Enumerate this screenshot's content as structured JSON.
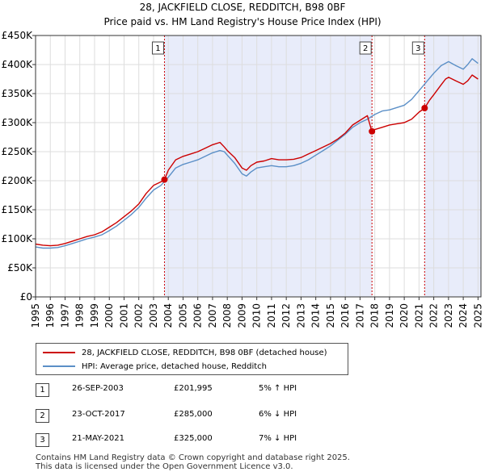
{
  "title_line1": "28, JACKFIELD CLOSE, REDDITCH, B98 0BF",
  "title_line2": "Price paid vs. HM Land Registry's House Price Index (HPI)",
  "chart_data": {
    "type": "line",
    "title": "28, JACKFIELD CLOSE, REDDITCH, B98 0BF — Price paid vs. HM Land Registry's House Price Index (HPI)",
    "xlabel": "",
    "ylabel": "",
    "xlim": [
      1995.0,
      2025.2
    ],
    "ylim": [
      0,
      450000
    ],
    "y_ticks": [
      0,
      50000,
      100000,
      150000,
      200000,
      250000,
      300000,
      350000,
      400000,
      450000
    ],
    "y_tick_labels": [
      "£0",
      "£50K",
      "£100K",
      "£150K",
      "£200K",
      "£250K",
      "£300K",
      "£350K",
      "£400K",
      "£450K"
    ],
    "x_ticks": [
      1995,
      1996,
      1997,
      1998,
      1999,
      2000,
      2001,
      2002,
      2003,
      2004,
      2005,
      2006,
      2007,
      2008,
      2009,
      2010,
      2011,
      2012,
      2013,
      2014,
      2015,
      2016,
      2017,
      2018,
      2019,
      2020,
      2021,
      2022,
      2023,
      2024,
      2025
    ],
    "x_tick_labels": [
      "1995",
      "1996",
      "1997",
      "1998",
      "1999",
      "2000",
      "2001",
      "2002",
      "2003",
      "2004",
      "2005",
      "2006",
      "2007",
      "2008",
      "2009",
      "2010",
      "2011",
      "2012",
      "2013",
      "2014",
      "2015",
      "2016",
      "2017",
      "2018",
      "2019",
      "2020",
      "2021",
      "2022",
      "2023",
      "2024",
      "2025"
    ],
    "grid": true,
    "series": [
      {
        "name": "28, JACKFIELD CLOSE, REDDITCH, B98 0BF (detached house)",
        "color": "#cc0000",
        "x": [
          1995.0,
          1995.5,
          1996.0,
          1996.5,
          1997.0,
          1997.5,
          1998.0,
          1998.5,
          1999.0,
          1999.5,
          2000.0,
          2000.5,
          2001.0,
          2001.5,
          2002.0,
          2002.5,
          2003.0,
          2003.5,
          2003.74,
          2004.0,
          2004.5,
          2005.0,
          2005.5,
          2006.0,
          2006.5,
          2007.0,
          2007.5,
          2007.8,
          2008.0,
          2008.5,
          2009.0,
          2009.3,
          2009.6,
          2010.0,
          2010.5,
          2011.0,
          2011.5,
          2012.0,
          2012.5,
          2013.0,
          2013.5,
          2014.0,
          2014.5,
          2015.0,
          2015.5,
          2016.0,
          2016.5,
          2017.0,
          2017.5,
          2017.8,
          2018.0,
          2018.5,
          2019.0,
          2019.5,
          2020.0,
          2020.5,
          2021.0,
          2021.38,
          2021.7,
          2022.0,
          2022.5,
          2022.8,
          2023.0,
          2023.5,
          2024.0,
          2024.3,
          2024.6,
          2025.0
        ],
        "y": [
          91000,
          89000,
          88000,
          89000,
          92000,
          96000,
          100000,
          104000,
          107000,
          112000,
          120000,
          128000,
          138000,
          148000,
          160000,
          178000,
          192000,
          198000,
          201995,
          218000,
          236000,
          242000,
          246000,
          250000,
          256000,
          262000,
          266000,
          258000,
          252000,
          240000,
          222000,
          218000,
          226000,
          232000,
          234000,
          238000,
          236000,
          236000,
          237000,
          240000,
          246000,
          252000,
          258000,
          264000,
          272000,
          282000,
          296000,
          304000,
          312000,
          285000,
          288000,
          292000,
          296000,
          298000,
          300000,
          306000,
          318000,
          325000,
          338000,
          348000,
          365000,
          375000,
          378000,
          372000,
          366000,
          372000,
          382000,
          375000
        ]
      },
      {
        "name": "HPI: Average price, detached house, Redditch",
        "color": "#5b8fc7",
        "x": [
          1995.0,
          1995.5,
          1996.0,
          1996.5,
          1997.0,
          1997.5,
          1998.0,
          1998.5,
          1999.0,
          1999.5,
          2000.0,
          2000.5,
          2001.0,
          2001.5,
          2002.0,
          2002.5,
          2003.0,
          2003.5,
          2004.0,
          2004.5,
          2005.0,
          2005.5,
          2006.0,
          2006.5,
          2007.0,
          2007.5,
          2007.8,
          2008.0,
          2008.5,
          2009.0,
          2009.3,
          2009.6,
          2010.0,
          2010.5,
          2011.0,
          2011.5,
          2012.0,
          2012.5,
          2013.0,
          2013.5,
          2014.0,
          2014.5,
          2015.0,
          2015.5,
          2016.0,
          2016.5,
          2017.0,
          2017.5,
          2018.0,
          2018.5,
          2019.0,
          2019.5,
          2020.0,
          2020.5,
          2021.0,
          2021.5,
          2022.0,
          2022.5,
          2023.0,
          2023.5,
          2024.0,
          2024.3,
          2024.6,
          2025.0
        ],
        "y": [
          86000,
          84000,
          84000,
          85000,
          88000,
          92000,
          96000,
          100000,
          103000,
          107000,
          114000,
          122000,
          132000,
          142000,
          154000,
          170000,
          184000,
          192000,
          206000,
          222000,
          228000,
          232000,
          236000,
          242000,
          248000,
          252000,
          250000,
          244000,
          230000,
          212000,
          208000,
          215000,
          222000,
          224000,
          226000,
          224000,
          224000,
          226000,
          230000,
          236000,
          244000,
          252000,
          260000,
          270000,
          280000,
          292000,
          300000,
          306000,
          314000,
          320000,
          322000,
          326000,
          330000,
          340000,
          355000,
          370000,
          385000,
          398000,
          405000,
          398000,
          392000,
          400000,
          410000,
          402000
        ]
      }
    ],
    "sale_markers": [
      {
        "label": "1",
        "x": 2003.74,
        "y": 201995
      },
      {
        "label": "2",
        "x": 2017.81,
        "y": 285000
      },
      {
        "label": "3",
        "x": 2021.38,
        "y": 325000
      }
    ],
    "shaded_periods": [
      [
        2003.74,
        2017.81
      ],
      [
        2021.38,
        2025.2
      ]
    ]
  },
  "legend": {
    "property_label": "28, JACKFIELD CLOSE, REDDITCH, B98 0BF (detached house)",
    "hpi_label": "HPI: Average price, detached house, Redditch",
    "property_color": "#cc0000",
    "hpi_color": "#5b8fc7"
  },
  "transactions": [
    {
      "num": "1",
      "date": "26-SEP-2003",
      "price": "£201,995",
      "hpi": "5% ↑ HPI"
    },
    {
      "num": "2",
      "date": "23-OCT-2017",
      "price": "£285,000",
      "hpi": "6% ↓ HPI"
    },
    {
      "num": "3",
      "date": "21-MAY-2021",
      "price": "£325,000",
      "hpi": "7% ↓ HPI"
    }
  ],
  "footer": {
    "line1": "Contains HM Land Registry data © Crown copyright and database right 2025.",
    "line2": "This data is licensed under the Open Government Licence v3.0."
  }
}
